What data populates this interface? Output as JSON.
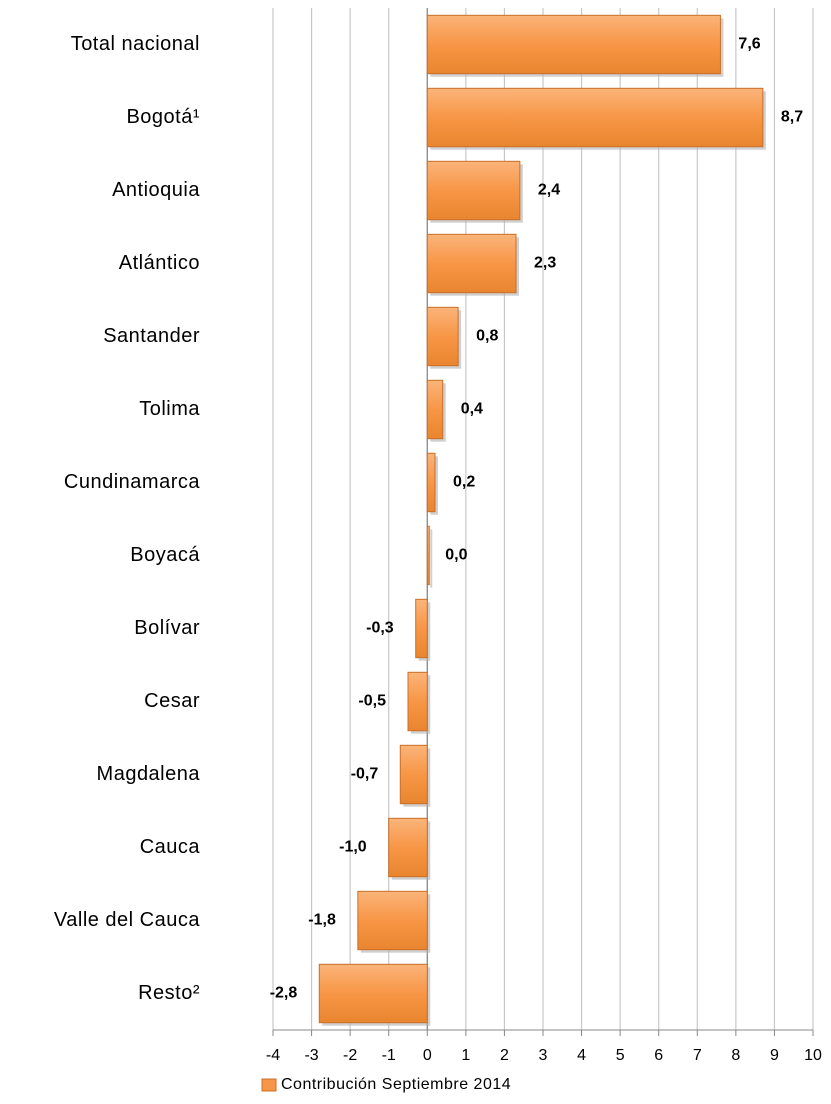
{
  "chart_data": {
    "type": "bar",
    "orientation": "horizontal",
    "categories": [
      "Total nacional",
      "Bogotá¹",
      "Antioquia",
      "Atlántico",
      "Santander",
      "Tolima",
      "Cundinamarca",
      "Boyacá",
      "Bolívar",
      "Cesar",
      "Magdalena",
      "Cauca",
      "Valle del Cauca",
      "Resto²"
    ],
    "series": [
      {
        "name": "Contribución Septiembre 2014",
        "color": "#f79646",
        "values": [
          7.6,
          8.7,
          2.4,
          2.3,
          0.8,
          0.4,
          0.2,
          0.0,
          -0.3,
          -0.5,
          -0.7,
          -1.0,
          -1.8,
          -2.8
        ],
        "value_labels": [
          "7,6",
          "8,7",
          "2,4",
          "2,3",
          "0,8",
          "0,4",
          "0,2",
          "0,0",
          "-0,3",
          "-0,5",
          "-0,7",
          "-1,0",
          "-1,8",
          "-2,8"
        ]
      }
    ],
    "xlim": [
      -4,
      10
    ],
    "xticks": [
      -4,
      -3,
      -2,
      -1,
      0,
      1,
      2,
      3,
      4,
      5,
      6,
      7,
      8,
      9,
      10
    ],
    "grid": true,
    "legend": "bottom"
  }
}
